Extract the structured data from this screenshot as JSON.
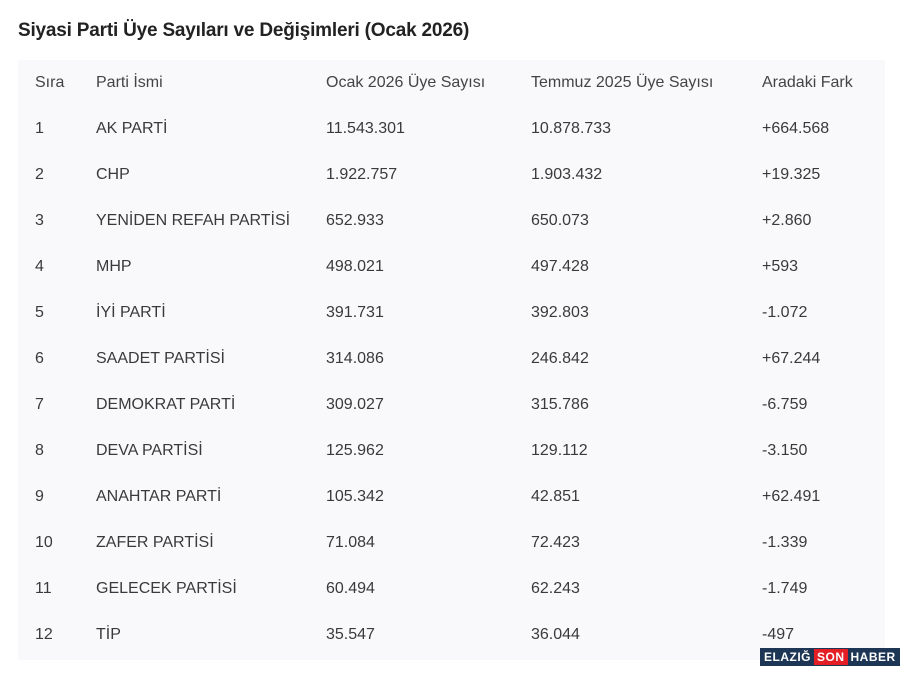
{
  "title": "Siyasi Parti Üye Sayıları ve Değişimleri (Ocak 2026)",
  "headers": [
    "Sıra",
    "Parti İsmi",
    "Ocak 2026 Üye Sayısı",
    "Temmuz 2025 Üye Sayısı",
    "Aradaki Fark"
  ],
  "rows": [
    [
      "1",
      "AK PARTİ",
      "11.543.301",
      "10.878.733",
      "+664.568"
    ],
    [
      "2",
      "CHP",
      "1.922.757",
      "1.903.432",
      "+19.325"
    ],
    [
      "3",
      "YENİDEN REFAH PARTİSİ",
      "652.933",
      "650.073",
      "+2.860"
    ],
    [
      "4",
      "MHP",
      "498.021",
      "497.428",
      "+593"
    ],
    [
      "5",
      "İYİ PARTİ",
      "391.731",
      "392.803",
      "-1.072"
    ],
    [
      "6",
      "SAADET PARTİSİ",
      "314.086",
      "246.842",
      "+67.244"
    ],
    [
      "7",
      "DEMOKRAT PARTİ",
      "309.027",
      "315.786",
      "-6.759"
    ],
    [
      "8",
      "DEVA PARTİSİ",
      "125.962",
      "129.112",
      "-3.150"
    ],
    [
      "9",
      "ANAHTAR PARTİ",
      "105.342",
      "42.851",
      "+62.491"
    ],
    [
      "10",
      "ZAFER PARTİSİ",
      "71.084",
      "72.423",
      "-1.339"
    ],
    [
      "11",
      "GELECEK PARTİSİ",
      "60.494",
      "62.243",
      "-1.749"
    ],
    [
      "12",
      "TİP",
      "35.547",
      "36.044",
      "-497"
    ]
  ],
  "watermark": {
    "part1": "ELAZIĞ",
    "part2": "SON",
    "part3": "HABER"
  }
}
